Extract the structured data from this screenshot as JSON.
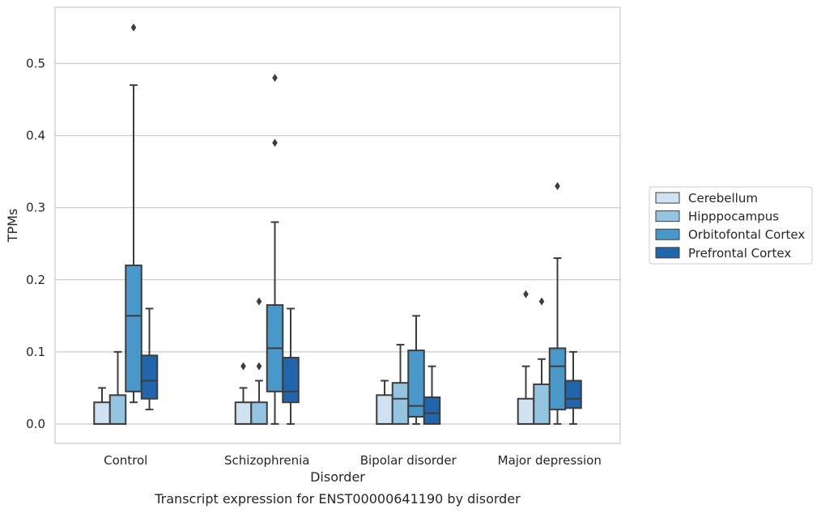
{
  "chart_data": {
    "type": "box",
    "caption": "Transcript expression for ENST00000641190 by disorder",
    "xlabel": "Disorder",
    "ylabel": "TPMs",
    "ylim": [
      -0.027,
      0.578
    ],
    "yticks": [
      0.0,
      0.1,
      0.2,
      0.3,
      0.4,
      0.5
    ],
    "ytick_labels": [
      "0.0",
      "0.1",
      "0.2",
      "0.3",
      "0.4",
      "0.5"
    ],
    "grid": "horizontal",
    "legend_position": "right",
    "categories": [
      "Control",
      "Schizophrenia",
      "Bipolar disorder",
      "Major depression"
    ],
    "series": [
      {
        "name": "Cerebellum",
        "color": "#d0e1f2",
        "boxes": [
          {
            "low": 0.0,
            "q1": 0.0,
            "median": 0.0,
            "q3": 0.03,
            "high": 0.05,
            "outliers": []
          },
          {
            "low": 0.0,
            "q1": 0.0,
            "median": 0.0,
            "q3": 0.03,
            "high": 0.05,
            "outliers": [
              0.08
            ]
          },
          {
            "low": 0.0,
            "q1": 0.0,
            "median": 0.0,
            "q3": 0.04,
            "high": 0.06,
            "outliers": []
          },
          {
            "low": 0.0,
            "q1": 0.0,
            "median": 0.0,
            "q3": 0.035,
            "high": 0.08,
            "outliers": [
              0.18
            ]
          }
        ]
      },
      {
        "name": "Hipppocampus",
        "color": "#94c4df",
        "boxes": [
          {
            "low": 0.0,
            "q1": 0.0,
            "median": 0.0,
            "q3": 0.04,
            "high": 0.1,
            "outliers": []
          },
          {
            "low": 0.0,
            "q1": 0.0,
            "median": 0.0,
            "q3": 0.03,
            "high": 0.06,
            "outliers": [
              0.08,
              0.17
            ]
          },
          {
            "low": 0.0,
            "q1": 0.0,
            "median": 0.035,
            "q3": 0.057,
            "high": 0.11,
            "outliers": []
          },
          {
            "low": 0.0,
            "q1": 0.0,
            "median": 0.0,
            "q3": 0.055,
            "high": 0.09,
            "outliers": [
              0.17
            ]
          }
        ]
      },
      {
        "name": "Orbitofontal Cortex",
        "color": "#4a98c9",
        "boxes": [
          {
            "low": 0.03,
            "q1": 0.045,
            "median": 0.15,
            "q3": 0.22,
            "high": 0.47,
            "outliers": [
              0.55
            ]
          },
          {
            "low": 0.0,
            "q1": 0.045,
            "median": 0.105,
            "q3": 0.165,
            "high": 0.28,
            "outliers": [
              0.39,
              0.48
            ]
          },
          {
            "low": 0.0,
            "q1": 0.01,
            "median": 0.025,
            "q3": 0.102,
            "high": 0.15,
            "outliers": []
          },
          {
            "low": 0.0,
            "q1": 0.02,
            "median": 0.08,
            "q3": 0.105,
            "high": 0.23,
            "outliers": [
              0.33
            ]
          }
        ]
      },
      {
        "name": "Prefrontal Cortex",
        "color": "#2166ac",
        "boxes": [
          {
            "low": 0.02,
            "q1": 0.035,
            "median": 0.06,
            "q3": 0.095,
            "high": 0.16,
            "outliers": []
          },
          {
            "low": 0.0,
            "q1": 0.03,
            "median": 0.045,
            "q3": 0.092,
            "high": 0.16,
            "outliers": []
          },
          {
            "low": 0.0,
            "q1": 0.0,
            "median": 0.015,
            "q3": 0.037,
            "high": 0.08,
            "outliers": []
          },
          {
            "low": 0.0,
            "q1": 0.022,
            "median": 0.035,
            "q3": 0.06,
            "high": 0.1,
            "outliers": []
          }
        ]
      }
    ]
  }
}
